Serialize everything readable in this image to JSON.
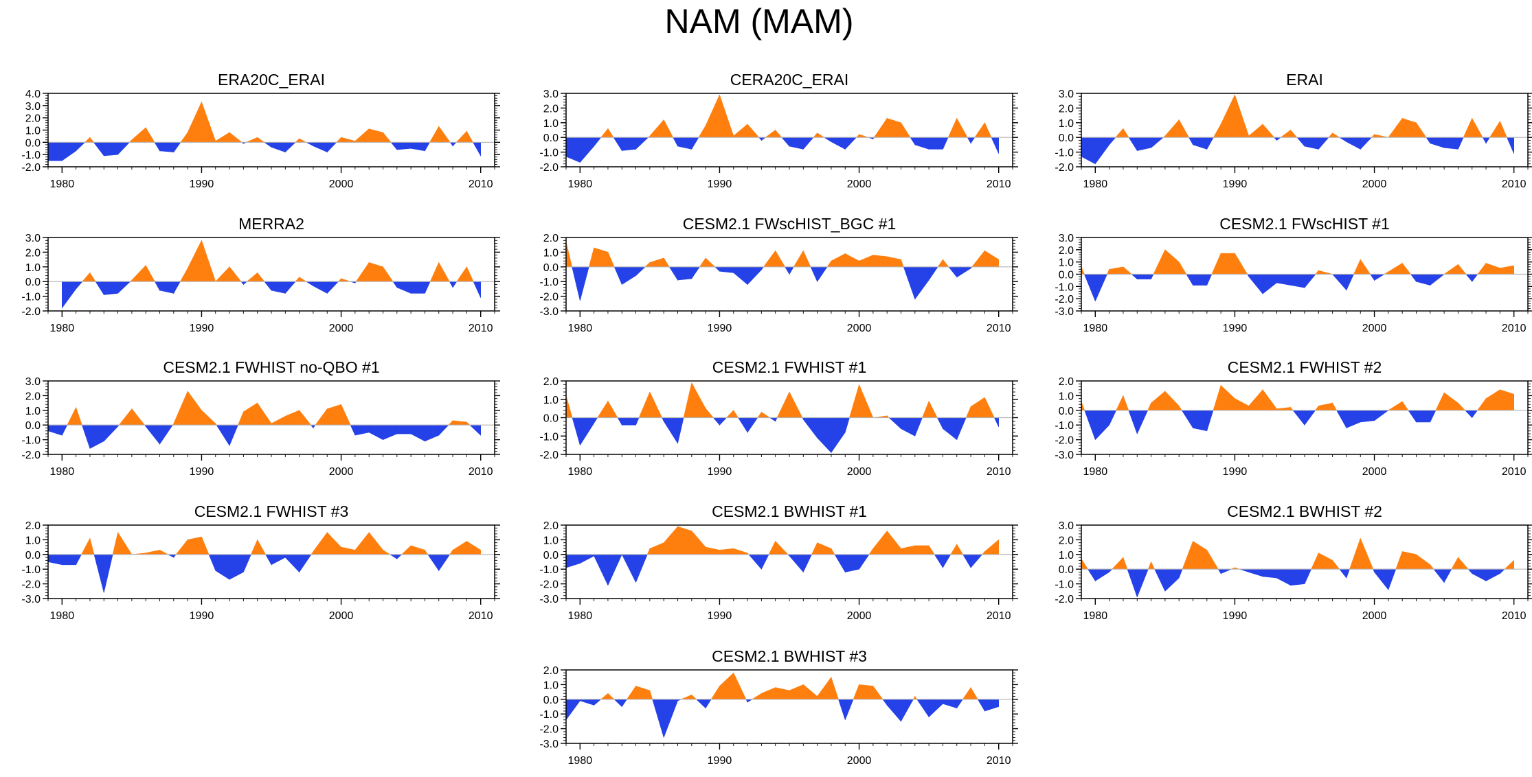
{
  "figure": {
    "title": "NAM (MAM)"
  },
  "colors": {
    "positive": "#ff7f0e",
    "negative": "#2541e8",
    "axis": "#000000",
    "zero_line": "#b3b3b3"
  },
  "chart_data": [
    {
      "type": "area",
      "title": "ERA20C_ERAI",
      "x": [
        1979,
        1980,
        1981,
        1982,
        1983,
        1984,
        1985,
        1986,
        1987,
        1988,
        1989,
        1990,
        1991,
        1992,
        1993,
        1994,
        1995,
        1996,
        1997,
        1998,
        1999,
        2000,
        2001,
        2002,
        2003,
        2004,
        2005,
        2006,
        2007,
        2008,
        2009,
        2010
      ],
      "values": [
        -1.5,
        -1.5,
        -0.7,
        0.4,
        -1.1,
        -1.0,
        0.2,
        1.2,
        -0.7,
        -0.8,
        0.8,
        3.3,
        0.1,
        0.8,
        -0.1,
        0.4,
        -0.4,
        -0.8,
        0.3,
        -0.3,
        -0.8,
        0.4,
        0.1,
        1.1,
        0.8,
        -0.6,
        -0.5,
        -0.7,
        1.3,
        -0.3,
        0.9,
        -1.1
      ],
      "ylim": [
        -2.0,
        4.0
      ],
      "yticks": [
        "4.0",
        "3.0",
        "2.0",
        "1.0",
        "0.0",
        "-1.0",
        "-2.0"
      ],
      "xticks": [
        "1980",
        "1990",
        "2000",
        "2010"
      ]
    },
    {
      "type": "area",
      "title": "CERA20C_ERAI",
      "x": [
        1979,
        1980,
        1981,
        1982,
        1983,
        1984,
        1985,
        1986,
        1987,
        1988,
        1989,
        1990,
        1991,
        1992,
        1993,
        1994,
        1995,
        1996,
        1997,
        1998,
        1999,
        2000,
        2001,
        2002,
        2003,
        2004,
        2005,
        2006,
        2007,
        2008,
        2009,
        2010
      ],
      "values": [
        -1.3,
        -1.7,
        -0.6,
        0.6,
        -0.9,
        -0.8,
        0.1,
        1.2,
        -0.6,
        -0.8,
        0.8,
        2.9,
        0.1,
        0.9,
        -0.2,
        0.5,
        -0.6,
        -0.8,
        0.3,
        -0.3,
        -0.8,
        0.2,
        -0.1,
        1.3,
        1.0,
        -0.5,
        -0.8,
        -0.8,
        1.3,
        -0.4,
        1.0,
        -1.1
      ],
      "ylim": [
        -2.0,
        3.0
      ],
      "yticks": [
        "3.0",
        "2.0",
        "1.0",
        "0.0",
        "-1.0",
        "-2.0"
      ],
      "xticks": [
        "1980",
        "1990",
        "2000",
        "2010"
      ]
    },
    {
      "type": "area",
      "title": "ERAI",
      "x": [
        1979,
        1980,
        1981,
        1982,
        1983,
        1984,
        1985,
        1986,
        1987,
        1988,
        1989,
        1990,
        1991,
        1992,
        1993,
        1994,
        1995,
        1996,
        1997,
        1998,
        1999,
        2000,
        2001,
        2002,
        2003,
        2004,
        2005,
        2006,
        2007,
        2008,
        2009,
        2010
      ],
      "values": [
        -1.3,
        -1.8,
        -0.5,
        0.6,
        -0.9,
        -0.7,
        0.1,
        1.2,
        -0.5,
        -0.8,
        0.9,
        2.9,
        0.1,
        0.9,
        -0.2,
        0.5,
        -0.6,
        -0.8,
        0.3,
        -0.3,
        -0.8,
        0.2,
        0.0,
        1.3,
        1.0,
        -0.4,
        -0.7,
        -0.8,
        1.3,
        -0.4,
        1.1,
        -1.1
      ],
      "ylim": [
        -2.0,
        3.0
      ],
      "yticks": [
        "3.0",
        "2.0",
        "1.0",
        "0.0",
        "-1.0",
        "-2.0"
      ],
      "xticks": [
        "1980",
        "1990",
        "2000",
        "2010"
      ]
    },
    {
      "type": "area",
      "title": "MERRA2",
      "x": [
        1980,
        1981,
        1982,
        1983,
        1984,
        1985,
        1986,
        1987,
        1988,
        1989,
        1990,
        1991,
        1992,
        1993,
        1994,
        1995,
        1996,
        1997,
        1998,
        1999,
        2000,
        2001,
        2002,
        2003,
        2004,
        2005,
        2006,
        2007,
        2008,
        2009,
        2010
      ],
      "values": [
        -1.8,
        -0.5,
        0.6,
        -0.9,
        -0.8,
        0.1,
        1.1,
        -0.6,
        -0.8,
        0.9,
        2.8,
        0.0,
        1.0,
        -0.2,
        0.6,
        -0.6,
        -0.8,
        0.3,
        -0.3,
        -0.8,
        0.2,
        -0.1,
        1.3,
        1.0,
        -0.4,
        -0.8,
        -0.8,
        1.3,
        -0.4,
        1.0,
        -1.1
      ],
      "ylim": [
        -2.0,
        3.0
      ],
      "yticks": [
        "3.0",
        "2.0",
        "1.0",
        "0.0",
        "-1.0",
        "-2.0"
      ],
      "xticks": [
        "1980",
        "1990",
        "2000",
        "2010"
      ]
    },
    {
      "type": "area",
      "title": "CESM2.1 FWscHIST_BGC #1",
      "x": [
        1979,
        1980,
        1981,
        1982,
        1983,
        1984,
        1985,
        1986,
        1987,
        1988,
        1989,
        1990,
        1991,
        1992,
        1993,
        1994,
        1995,
        1996,
        1997,
        1998,
        1999,
        2000,
        2001,
        2002,
        2003,
        2004,
        2005,
        2006,
        2007,
        2008,
        2009,
        2010
      ],
      "values": [
        1.7,
        -2.3,
        1.3,
        1.0,
        -1.2,
        -0.6,
        0.3,
        0.6,
        -0.9,
        -0.8,
        0.6,
        -0.3,
        -0.4,
        -1.2,
        -0.2,
        1.1,
        -0.5,
        1.1,
        -1.0,
        0.4,
        0.9,
        0.4,
        0.8,
        0.7,
        0.5,
        -2.2,
        -0.9,
        0.5,
        -0.7,
        -0.1,
        1.1,
        0.5
      ],
      "ylim": [
        -3.0,
        2.0
      ],
      "yticks": [
        "2.0",
        "1.0",
        "0.0",
        "-1.0",
        "-2.0",
        "-3.0"
      ],
      "xticks": [
        "1980",
        "1990",
        "2000",
        "2010"
      ]
    },
    {
      "type": "area",
      "title": "CESM2.1 FWscHIST #1",
      "x": [
        1979,
        1980,
        1981,
        1982,
        1983,
        1984,
        1985,
        1986,
        1987,
        1988,
        1989,
        1990,
        1991,
        1992,
        1993,
        1994,
        1995,
        1996,
        1997,
        1998,
        1999,
        2000,
        2001,
        2002,
        2003,
        2004,
        2005,
        2006,
        2007,
        2008,
        2009,
        2010
      ],
      "values": [
        0.6,
        -2.2,
        0.4,
        0.6,
        -0.4,
        -0.4,
        2.0,
        1.0,
        -0.9,
        -0.9,
        1.7,
        1.7,
        -0.2,
        -1.6,
        -0.7,
        -0.9,
        -1.1,
        0.3,
        0.0,
        -1.3,
        1.2,
        -0.5,
        0.2,
        0.9,
        -0.6,
        -0.9,
        0.0,
        0.8,
        -0.6,
        0.9,
        0.5,
        0.7
      ],
      "ylim": [
        -3.0,
        3.0
      ],
      "yticks": [
        "3.0",
        "2.0",
        "1.0",
        "0.0",
        "-1.0",
        "-2.0",
        "-3.0"
      ],
      "xticks": [
        "1980",
        "1990",
        "2000",
        "2010"
      ]
    },
    {
      "type": "area",
      "title": "CESM2.1 FWHIST no-QBO #1",
      "x": [
        1979,
        1980,
        1981,
        1982,
        1983,
        1984,
        1985,
        1986,
        1987,
        1988,
        1989,
        1990,
        1991,
        1992,
        1993,
        1994,
        1995,
        1996,
        1997,
        1998,
        1999,
        2000,
        2001,
        2002,
        2003,
        2004,
        2005,
        2006,
        2007,
        2008,
        2009,
        2010
      ],
      "values": [
        -0.4,
        -0.7,
        1.2,
        -1.6,
        -1.1,
        -0.1,
        1.1,
        -0.1,
        -1.3,
        0.1,
        2.3,
        1.0,
        0.1,
        -1.4,
        0.9,
        1.5,
        0.1,
        0.6,
        1.0,
        -0.2,
        1.1,
        1.4,
        -0.7,
        -0.5,
        -1.0,
        -0.6,
        -0.6,
        -1.1,
        -0.7,
        0.3,
        0.2,
        -0.7
      ],
      "ylim": [
        -2.0,
        3.0
      ],
      "yticks": [
        "3.0",
        "2.0",
        "1.0",
        "0.0",
        "-1.0",
        "-2.0"
      ],
      "xticks": [
        "1980",
        "1990",
        "2000",
        "2010"
      ]
    },
    {
      "type": "area",
      "title": "CESM2.1 FWHIST #1",
      "x": [
        1979,
        1980,
        1981,
        1982,
        1983,
        1984,
        1985,
        1986,
        1987,
        1988,
        1989,
        1990,
        1991,
        1992,
        1993,
        1994,
        1995,
        1996,
        1997,
        1998,
        1999,
        2000,
        2001,
        2002,
        2003,
        2004,
        2005,
        2006,
        2007,
        2008,
        2009,
        2010
      ],
      "values": [
        1.2,
        -1.5,
        -0.3,
        0.9,
        -0.4,
        -0.4,
        1.4,
        -0.2,
        -1.4,
        1.9,
        0.5,
        -0.4,
        0.4,
        -0.8,
        0.3,
        -0.2,
        1.4,
        -0.1,
        -1.1,
        -1.9,
        -0.8,
        1.8,
        0.0,
        0.1,
        -0.6,
        -1.0,
        0.9,
        -0.6,
        -1.2,
        0.6,
        1.1,
        -0.5
      ],
      "ylim": [
        -2.0,
        2.0
      ],
      "yticks": [
        "2.0",
        "1.0",
        "0.0",
        "-1.0",
        "-2.0"
      ],
      "xticks": [
        "1980",
        "1990",
        "2000",
        "2010"
      ]
    },
    {
      "type": "area",
      "title": "CESM2.1 FWHIST #2",
      "x": [
        1979,
        1980,
        1981,
        1982,
        1983,
        1984,
        1985,
        1986,
        1987,
        1988,
        1989,
        1990,
        1991,
        1992,
        1993,
        1994,
        1995,
        1996,
        1997,
        1998,
        1999,
        2000,
        2001,
        2002,
        2003,
        2004,
        2005,
        2006,
        2007,
        2008,
        2009,
        2010
      ],
      "values": [
        0.6,
        -2.0,
        -1.0,
        1.0,
        -1.6,
        0.5,
        1.3,
        0.3,
        -1.2,
        -1.4,
        1.7,
        0.8,
        0.3,
        1.4,
        0.1,
        0.2,
        -1.0,
        0.3,
        0.5,
        -1.2,
        -0.8,
        -0.7,
        0.0,
        0.6,
        -0.8,
        -0.8,
        1.2,
        0.5,
        -0.5,
        0.8,
        1.4,
        1.1
      ],
      "ylim": [
        -3.0,
        2.0
      ],
      "yticks": [
        "2.0",
        "1.0",
        "0.0",
        "-1.0",
        "-2.0",
        "-3.0"
      ],
      "xticks": [
        "1980",
        "1990",
        "2000",
        "2010"
      ]
    },
    {
      "type": "area",
      "title": "CESM2.1 FWHIST #3",
      "x": [
        1979,
        1980,
        1981,
        1982,
        1983,
        1984,
        1985,
        1986,
        1987,
        1988,
        1989,
        1990,
        1991,
        1992,
        1993,
        1994,
        1995,
        1996,
        1997,
        1998,
        1999,
        2000,
        2001,
        2002,
        2003,
        2004,
        2005,
        2006,
        2007,
        2008,
        2009,
        2010
      ],
      "values": [
        -0.5,
        -0.7,
        -0.7,
        1.1,
        -2.6,
        1.5,
        0.0,
        0.1,
        0.3,
        -0.2,
        1.0,
        1.2,
        -1.1,
        -1.7,
        -1.2,
        1.0,
        -0.7,
        -0.2,
        -1.2,
        0.2,
        1.5,
        0.5,
        0.3,
        1.5,
        0.3,
        -0.3,
        0.6,
        0.3,
        -1.1,
        0.3,
        0.9,
        0.3
      ],
      "ylim": [
        -3.0,
        2.0
      ],
      "yticks": [
        "2.0",
        "1.0",
        "0.0",
        "-1.0",
        "-2.0",
        "-3.0"
      ],
      "xticks": [
        "1980",
        "1990",
        "2000",
        "2010"
      ]
    },
    {
      "type": "area",
      "title": "CESM2.1 BWHIST #1",
      "x": [
        1979,
        1980,
        1981,
        1982,
        1983,
        1984,
        1985,
        1986,
        1987,
        1988,
        1989,
        1990,
        1991,
        1992,
        1993,
        1994,
        1995,
        1996,
        1997,
        1998,
        1999,
        2000,
        2001,
        2002,
        2003,
        2004,
        2005,
        2006,
        2007,
        2008,
        2009,
        2010
      ],
      "values": [
        -0.9,
        -0.6,
        -0.1,
        -2.1,
        0.0,
        -1.9,
        0.4,
        0.8,
        1.9,
        1.6,
        0.5,
        0.3,
        0.4,
        0.1,
        -1.0,
        0.9,
        -0.1,
        -1.2,
        0.8,
        0.4,
        -1.2,
        -1.0,
        0.4,
        1.6,
        0.4,
        0.6,
        0.6,
        -0.9,
        0.7,
        -0.9,
        0.2,
        1.0
      ],
      "ylim": [
        -3.0,
        2.0
      ],
      "yticks": [
        "2.0",
        "1.0",
        "0.0",
        "-1.0",
        "-2.0",
        "-3.0"
      ],
      "xticks": [
        "1980",
        "1990",
        "2000",
        "2010"
      ]
    },
    {
      "type": "area",
      "title": "CESM2.1 BWHIST #2",
      "x": [
        1979,
        1980,
        1981,
        1982,
        1983,
        1984,
        1985,
        1986,
        1987,
        1988,
        1989,
        1990,
        1991,
        1992,
        1993,
        1994,
        1995,
        1996,
        1997,
        1998,
        1999,
        2000,
        2001,
        2002,
        2003,
        2004,
        2005,
        2006,
        2007,
        2008,
        2009,
        2010
      ],
      "values": [
        0.7,
        -0.8,
        -0.2,
        0.8,
        -1.9,
        0.5,
        -1.5,
        -0.6,
        1.9,
        1.3,
        -0.3,
        0.1,
        -0.2,
        -0.5,
        -0.6,
        -1.1,
        -1.0,
        1.1,
        0.6,
        -0.6,
        2.1,
        -0.2,
        -1.4,
        1.2,
        1.0,
        0.3,
        -0.9,
        0.8,
        -0.3,
        -0.8,
        -0.3,
        0.6
      ],
      "ylim": [
        -2.0,
        3.0
      ],
      "yticks": [
        "3.0",
        "2.0",
        "1.0",
        "0.0",
        "-1.0",
        "-2.0"
      ],
      "xticks": [
        "1980",
        "1990",
        "2000",
        "2010"
      ]
    },
    {
      "type": "area",
      "title": "CESM2.1 BWHIST #3",
      "x": [
        1979,
        1980,
        1981,
        1982,
        1983,
        1984,
        1985,
        1986,
        1987,
        1988,
        1989,
        1990,
        1991,
        1992,
        1993,
        1994,
        1995,
        1996,
        1997,
        1998,
        1999,
        2000,
        2001,
        2002,
        2003,
        2004,
        2005,
        2006,
        2007,
        2008,
        2009,
        2010
      ],
      "values": [
        -1.4,
        -0.1,
        -0.4,
        0.4,
        -0.5,
        0.9,
        0.6,
        -2.6,
        -0.1,
        0.3,
        -0.6,
        0.9,
        1.8,
        -0.2,
        0.4,
        0.8,
        0.6,
        1.0,
        0.2,
        1.5,
        -1.4,
        1.0,
        0.9,
        -0.4,
        -1.5,
        0.2,
        -1.2,
        -0.3,
        -0.6,
        0.8,
        -0.8,
        -0.5
      ],
      "ylim": [
        -3.0,
        2.0
      ],
      "yticks": [
        "2.0",
        "1.0",
        "0.0",
        "-1.0",
        "-2.0",
        "-3.0"
      ],
      "xticks": [
        "1980",
        "1990",
        "2000",
        "2010"
      ]
    }
  ]
}
